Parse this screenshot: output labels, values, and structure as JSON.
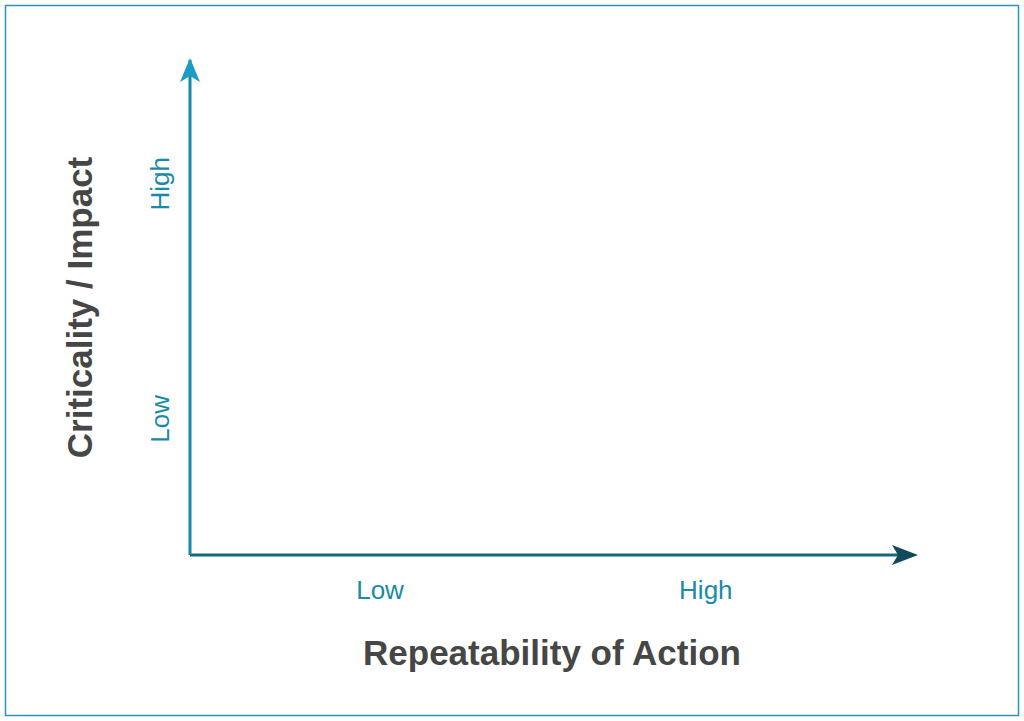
{
  "chart_data": {
    "type": "scatter",
    "x_label": "Repeatability of Action",
    "y_label": "Criticality / Impact",
    "xlim": [
      0,
      4
    ],
    "xticks": [
      {
        "value": 1.05,
        "label": "Low"
      },
      {
        "value": 2.85,
        "label": "High"
      }
    ],
    "ylim": [
      0,
      4
    ],
    "yticks": [
      {
        "value": 1.1,
        "label": "Low"
      },
      {
        "value": 3,
        "label": "High"
      }
    ],
    "grid": false
  }
}
